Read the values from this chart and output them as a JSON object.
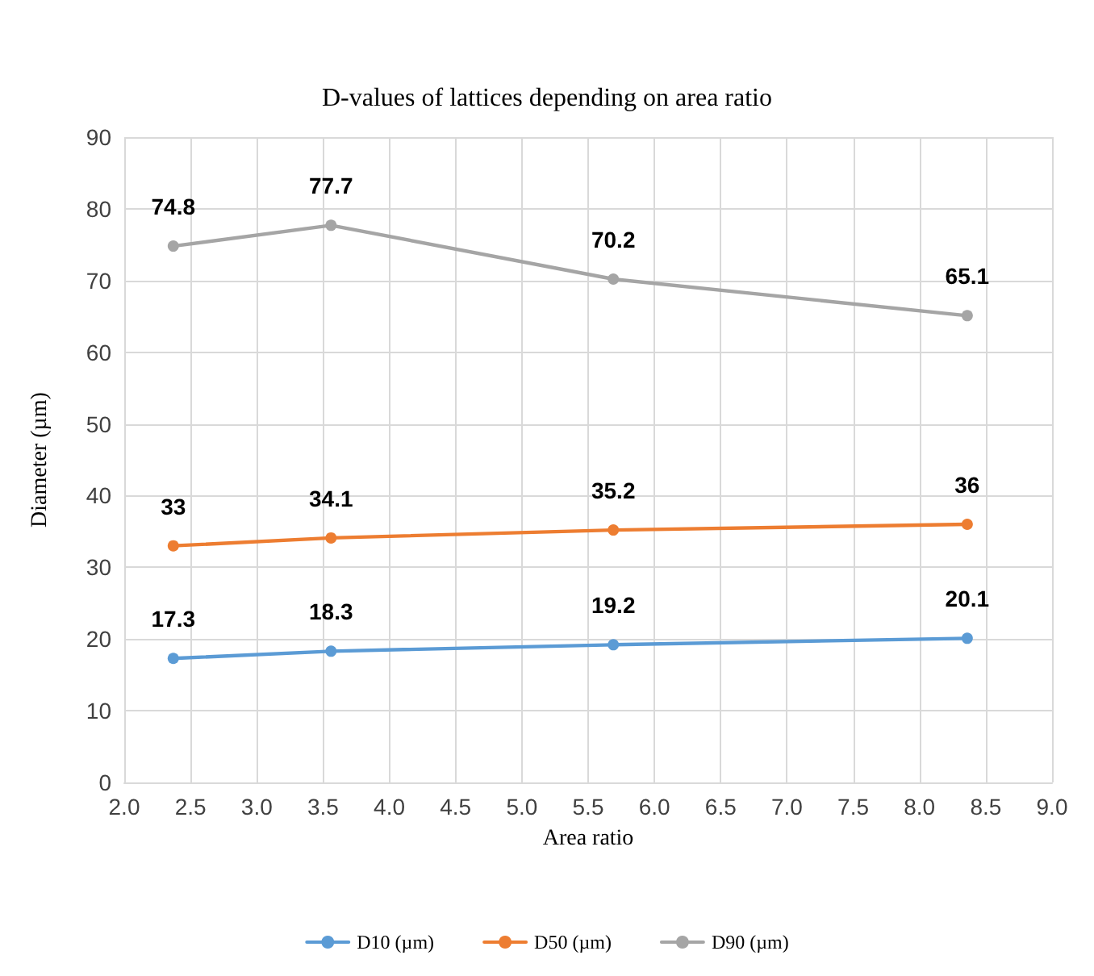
{
  "chart_data": {
    "type": "line",
    "title": "D-values of lattices depending on area ratio",
    "xlabel": "Area ratio",
    "ylabel": "Diameter (µm)",
    "x": [
      2.37,
      3.56,
      5.69,
      8.36
    ],
    "series": [
      {
        "name": "D10 (µm)",
        "color": "#5b9bd5",
        "values": [
          17.3,
          18.3,
          19.2,
          20.1
        ]
      },
      {
        "name": "D50 (µm)",
        "color": "#ed7d31",
        "values": [
          33,
          34.1,
          35.2,
          36
        ]
      },
      {
        "name": "D90 (µm)",
        "color": "#a5a5a5",
        "values": [
          74.8,
          77.7,
          70.2,
          65.1
        ]
      }
    ],
    "xlim": [
      2.0,
      9.0
    ],
    "xticks": [
      {
        "value": 2.0,
        "label": "2.0"
      },
      {
        "value": 2.5,
        "label": "2.5"
      },
      {
        "value": 3.0,
        "label": "3.0"
      },
      {
        "value": 3.5,
        "label": "3.5"
      },
      {
        "value": 4.0,
        "label": "4.0"
      },
      {
        "value": 4.5,
        "label": "4.5"
      },
      {
        "value": 5.0,
        "label": "5.0"
      },
      {
        "value": 5.5,
        "label": "5.5"
      },
      {
        "value": 6.0,
        "label": "6.0"
      },
      {
        "value": 6.5,
        "label": "6.5"
      },
      {
        "value": 7.0,
        "label": "7.0"
      },
      {
        "value": 7.5,
        "label": "7.5"
      },
      {
        "value": 8.0,
        "label": "8.0"
      },
      {
        "value": 8.5,
        "label": "8.5"
      },
      {
        "value": 9.0,
        "label": "9.0"
      }
    ],
    "ylim": [
      0,
      90
    ],
    "yticks": [
      0,
      10,
      20,
      30,
      40,
      50,
      60,
      70,
      80,
      90
    ],
    "grid": true,
    "legend": "bottom",
    "marker": "circle",
    "line_style": "solid",
    "data_labels": true
  }
}
